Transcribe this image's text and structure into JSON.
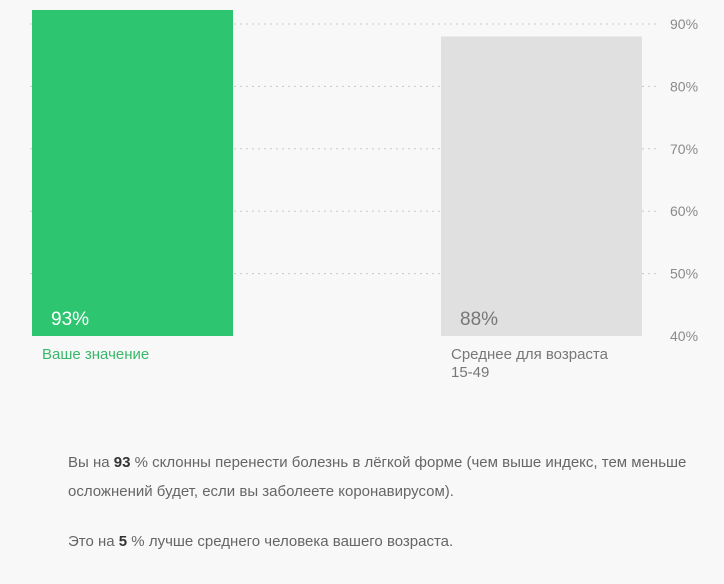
{
  "chart_data": {
    "type": "bar",
    "categories": [
      "Ваше значение",
      "Среднее для возраста 15-49"
    ],
    "category_lines": [
      [
        "Ваше значение"
      ],
      [
        "Среднее для возраста",
        "15-49"
      ]
    ],
    "values": [
      93,
      88
    ],
    "value_labels": [
      "93%",
      "88%"
    ],
    "ylim": [
      40,
      90
    ],
    "y_ticks": [
      40,
      50,
      60,
      70,
      80,
      90
    ],
    "y_tick_labels": [
      "40%",
      "50%",
      "60%",
      "70%",
      "80%",
      "90%"
    ],
    "y_axis_position": "right",
    "grid": true,
    "title": "",
    "xlabel": "",
    "ylabel": ""
  },
  "colors": {
    "user_bar": "#2ec571",
    "avg_bar": "#e0e0e0",
    "user_value_text": "#ffffff",
    "avg_value_text": "#777777",
    "user_label": "#39b86a",
    "avg_label": "#777777"
  },
  "summary": {
    "line1": {
      "before": "Вы на ",
      "value": "93",
      "after": " % склонны перенести болезнь в лёгкой форме (чем выше индекс, тем меньше осложнений будет, если вы заболеете коронавирусом)."
    },
    "line2": {
      "before": "Это на ",
      "value": "5",
      "after": " % лучше среднего человека вашего возраста."
    }
  }
}
